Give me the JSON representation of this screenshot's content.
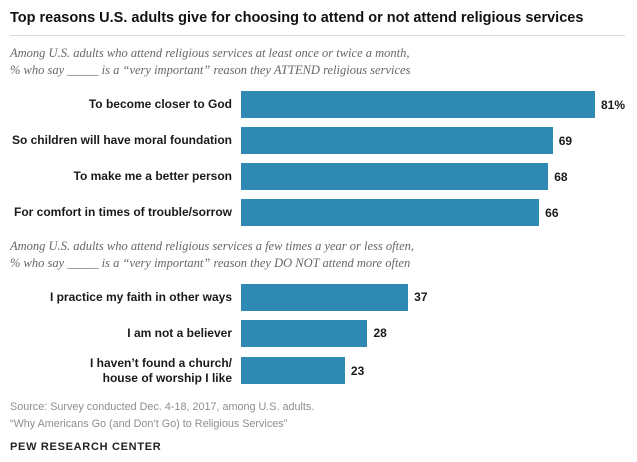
{
  "page": {
    "title": "Top reasons U.S. adults give for choosing to attend or not attend religious services",
    "source_line_1": "Source: Survey conducted Dec. 4-18, 2017, among U.S. adults.",
    "source_line_2": "“Why Americans Go (and Don’t Go) to Religious Services”",
    "brand": "PEW RESEARCH CENTER"
  },
  "colors": {
    "bar_blue": "#2e8ab3"
  },
  "chart_data": [
    {
      "type": "bar",
      "orientation": "horizontal",
      "subtitle_lines": [
        "Among U.S. adults who attend religious services at least once or twice a month,",
        "% who say _____ is a “very important” reason they ATTEND religious services"
      ],
      "categories": [
        "To become closer to God",
        "So children will have moral foundation",
        "To make me a better person",
        "For comfort in times of trouble/sorrow"
      ],
      "values": [
        81,
        69,
        68,
        66
      ],
      "value_labels": [
        "81%",
        "69",
        "68",
        "66"
      ],
      "xlim": [
        0,
        85
      ],
      "grid": false,
      "legend": false
    },
    {
      "type": "bar",
      "orientation": "horizontal",
      "subtitle_lines": [
        "Among U.S. adults who attend religious services a few times a year or less often,",
        "% who say _____ is a “very important” reason they DO NOT attend more often"
      ],
      "categories": [
        "I practice my faith in other ways",
        "I am not a believer",
        "I haven’t found a church/\nhouse of worship I like"
      ],
      "values": [
        37,
        28,
        23
      ],
      "value_labels": [
        "37",
        "28",
        "23"
      ],
      "xlim": [
        0,
        85
      ],
      "grid": false,
      "legend": false
    }
  ]
}
